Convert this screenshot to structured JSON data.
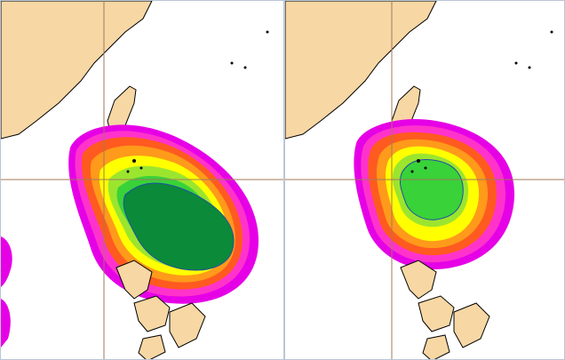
{
  "figure": {
    "panels": [
      {
        "id": "left",
        "description": ""
      },
      {
        "id": "right",
        "description": ""
      }
    ]
  },
  "colors": {
    "land": "#f7d7a4",
    "ocean": "#ffffff",
    "coastline": "#000000",
    "gridline": "#a07a5a",
    "frame": "#b9c6d6",
    "contours": [
      "#e600e6",
      "#ff33cc",
      "#ff5a1f",
      "#ff9a1a",
      "#ffff00",
      "#9be52f",
      "#39d239",
      "#0b8a3a"
    ],
    "contour_outline": "#1f4fa3"
  },
  "icons": [
    "map-coastline",
    "probability-contours"
  ]
}
